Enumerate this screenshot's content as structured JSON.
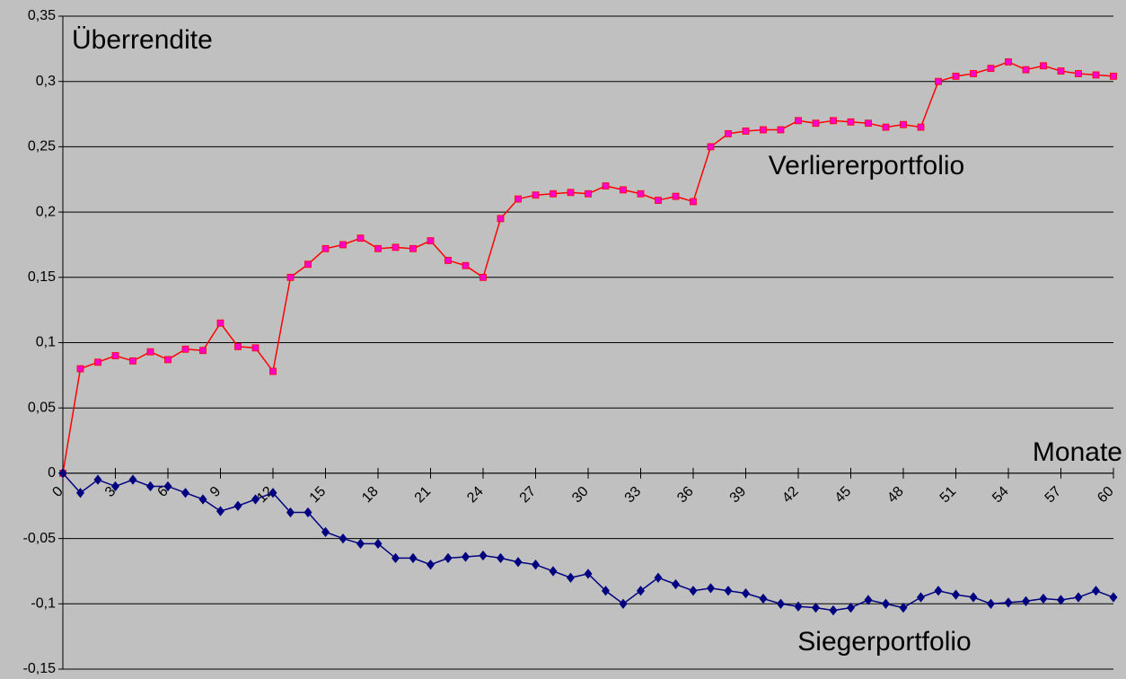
{
  "chart_data": {
    "type": "line",
    "y_label": "Überrendite",
    "x_label": "Monate",
    "x": [
      0,
      1,
      2,
      3,
      4,
      5,
      6,
      7,
      8,
      9,
      10,
      11,
      12,
      13,
      14,
      15,
      16,
      17,
      18,
      19,
      20,
      21,
      22,
      23,
      24,
      25,
      26,
      27,
      28,
      29,
      30,
      31,
      32,
      33,
      34,
      35,
      36,
      37,
      38,
      39,
      40,
      41,
      42,
      43,
      44,
      45,
      46,
      47,
      48,
      49,
      50,
      51,
      52,
      53,
      54,
      55,
      56,
      57,
      58,
      59,
      60
    ],
    "series": [
      {
        "name": "Verliererportfolio",
        "color": "#ff0000",
        "marker_color": "#ff00cc",
        "marker": "square",
        "values": [
          0,
          0.08,
          0.085,
          0.09,
          0.086,
          0.093,
          0.087,
          0.095,
          0.094,
          0.115,
          0.097,
          0.096,
          0.078,
          0.15,
          0.16,
          0.172,
          0.175,
          0.18,
          0.172,
          0.173,
          0.172,
          0.178,
          0.163,
          0.159,
          0.15,
          0.195,
          0.21,
          0.213,
          0.214,
          0.215,
          0.214,
          0.22,
          0.217,
          0.214,
          0.209,
          0.212,
          0.208,
          0.25,
          0.26,
          0.262,
          0.263,
          0.263,
          0.27,
          0.268,
          0.27,
          0.269,
          0.268,
          0.265,
          0.267,
          0.265,
          0.3,
          0.304,
          0.306,
          0.31,
          0.315,
          0.309,
          0.312,
          0.308,
          0.306,
          0.305,
          0.304
        ]
      },
      {
        "name": "Siegerportfolio",
        "color": "#000080",
        "marker_color": "#000080",
        "marker": "diamond",
        "values": [
          0,
          -0.015,
          -0.005,
          -0.01,
          -0.005,
          -0.01,
          -0.01,
          -0.015,
          -0.02,
          -0.029,
          -0.025,
          -0.02,
          -0.015,
          -0.03,
          -0.03,
          -0.045,
          -0.05,
          -0.054,
          -0.054,
          -0.065,
          -0.065,
          -0.07,
          -0.065,
          -0.064,
          -0.063,
          -0.065,
          -0.068,
          -0.07,
          -0.075,
          -0.08,
          -0.077,
          -0.09,
          -0.1,
          -0.09,
          -0.08,
          -0.085,
          -0.09,
          -0.088,
          -0.09,
          -0.092,
          -0.096,
          -0.1,
          -0.102,
          -0.103,
          -0.105,
          -0.103,
          -0.097,
          -0.1,
          -0.103,
          -0.095,
          -0.09,
          -0.093,
          -0.095,
          -0.1,
          -0.099,
          -0.098,
          -0.096,
          -0.097,
          -0.095,
          -0.09,
          -0.095
        ]
      }
    ],
    "xlim": [
      0,
      60
    ],
    "xticks": [
      0,
      3,
      6,
      9,
      12,
      15,
      18,
      21,
      24,
      27,
      30,
      33,
      36,
      39,
      42,
      45,
      48,
      51,
      54,
      57,
      60
    ],
    "ylim": [
      -0.15,
      0.35
    ],
    "yticks": [
      {
        "value": -0.15,
        "label": "-0,15"
      },
      {
        "value": -0.1,
        "label": "-0,1"
      },
      {
        "value": -0.05,
        "label": "-0,05"
      },
      {
        "value": 0,
        "label": "0"
      },
      {
        "value": 0.05,
        "label": "0,05"
      },
      {
        "value": 0.1,
        "label": "0,1"
      },
      {
        "value": 0.15,
        "label": "0,15"
      },
      {
        "value": 0.2,
        "label": "0,2"
      },
      {
        "value": 0.25,
        "label": "0,25"
      },
      {
        "value": 0.3,
        "label": "0,3"
      },
      {
        "value": 0.35,
        "label": "0,35"
      }
    ],
    "grid": true
  }
}
